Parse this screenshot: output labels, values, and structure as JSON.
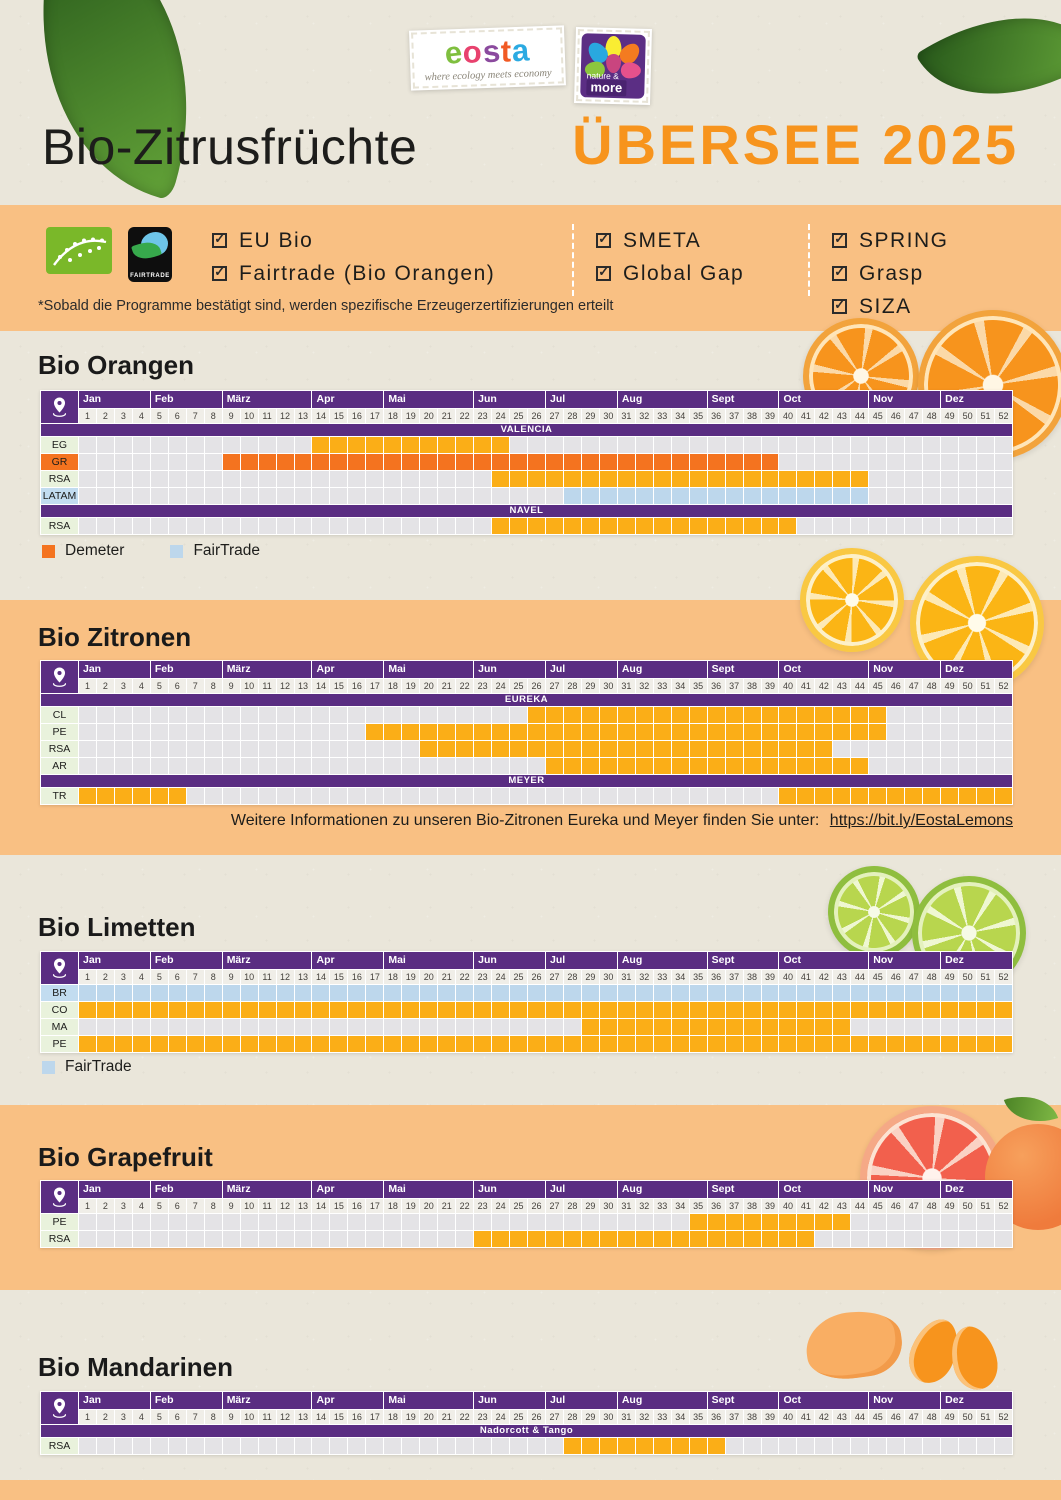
{
  "header": {
    "eosta_logo": {
      "word": "eosta",
      "tagline": "where ecology meets economy"
    },
    "nature_more_logo": {
      "top": "nature &",
      "bottom": "more"
    },
    "title_black": "Bio-Zitrusfrüchte",
    "title_orange": "ÜBERSEE 2025"
  },
  "certifications": {
    "fairtrade_logo_text": "FAIRTRADE",
    "columns": [
      [
        "EU Bio",
        "Fairtrade (Bio Orangen)"
      ],
      [
        "SMETA",
        "Global Gap"
      ],
      [
        "SPRING",
        "Grasp",
        "SIZA"
      ]
    ],
    "footnote": "*Sobald die Programme bestätigt sind, werden spezifische Erzeugerzertifizierungen erteilt"
  },
  "colors": {
    "purple": "#5A2D82",
    "standard_fill": "#FBAE17",
    "demeter_fill": "#F4731F",
    "fairtrade_fill": "#BDD7EC",
    "label_green": "#E9F2DC",
    "label_blue": "#C2DCF0",
    "empty_cell": "#E4E3E6",
    "band_orange": "#F9C083",
    "accent_orange": "#F7941D",
    "paper": "#EAE6DA"
  },
  "calendar": {
    "weeks_total": 52,
    "months": [
      {
        "label": "Jan",
        "weeks": 4
      },
      {
        "label": "Feb",
        "weeks": 4
      },
      {
        "label": "März",
        "weeks": 5
      },
      {
        "label": "Apr",
        "weeks": 4
      },
      {
        "label": "Mai",
        "weeks": 5
      },
      {
        "label": "Jun",
        "weeks": 4
      },
      {
        "label": "Jul",
        "weeks": 4
      },
      {
        "label": "Aug",
        "weeks": 5
      },
      {
        "label": "Sept",
        "weeks": 4
      },
      {
        "label": "Oct",
        "weeks": 5
      },
      {
        "label": "Nov",
        "weeks": 4
      },
      {
        "label": "Dez",
        "weeks": 4
      }
    ]
  },
  "legend_labels": {
    "demeter": "Demeter",
    "fairtrade": "FairTrade"
  },
  "chart_data": {
    "type": "gantt",
    "unit": "ISO week (1-52)",
    "charts": [
      {
        "title": "Bio Orangen",
        "legend": [
          "demeter",
          "fairtrade"
        ],
        "groups": [
          {
            "variety": "VALENCIA",
            "rows": [
              {
                "origin": "EG",
                "fill": "standard",
                "weeks": [
                  [
                    14,
                    24
                  ]
                ]
              },
              {
                "origin": "GR",
                "fill": "demeter",
                "weeks": [
                  [
                    9,
                    39
                  ]
                ]
              },
              {
                "origin": "RSA",
                "fill": "standard",
                "weeks": [
                  [
                    24,
                    44
                  ]
                ]
              },
              {
                "origin": "LATAM",
                "fill": "fairtrade",
                "weeks": [
                  [
                    28,
                    44
                  ]
                ]
              }
            ]
          },
          {
            "variety": "NAVEL",
            "rows": [
              {
                "origin": "RSA",
                "fill": "standard",
                "weeks": [
                  [
                    24,
                    40
                  ]
                ]
              }
            ]
          }
        ]
      },
      {
        "title": "Bio Zitronen",
        "legend": [],
        "note": "Weitere Informationen zu unseren Bio-Zitronen Eureka und Meyer finden Sie unter:",
        "link": "https://bit.ly/EostaLemons",
        "groups": [
          {
            "variety": "EUREKA",
            "rows": [
              {
                "origin": "CL",
                "fill": "standard",
                "weeks": [
                  [
                    26,
                    45
                  ]
                ]
              },
              {
                "origin": "PE",
                "fill": "standard",
                "weeks": [
                  [
                    17,
                    45
                  ]
                ]
              },
              {
                "origin": "RSA",
                "fill": "standard",
                "weeks": [
                  [
                    20,
                    42
                  ]
                ]
              },
              {
                "origin": "AR",
                "fill": "standard",
                "weeks": [
                  [
                    27,
                    44
                  ]
                ]
              }
            ]
          },
          {
            "variety": "MEYER",
            "rows": [
              {
                "origin": "TR",
                "fill": "standard",
                "weeks": [
                  [
                    1,
                    6
                  ],
                  [
                    40,
                    52
                  ]
                ]
              }
            ]
          }
        ]
      },
      {
        "title": "Bio Limetten",
        "legend": [
          "fairtrade"
        ],
        "groups": [
          {
            "variety": null,
            "rows": [
              {
                "origin": "BR",
                "fill": "fairtrade",
                "weeks": [
                  [
                    1,
                    52
                  ]
                ]
              },
              {
                "origin": "CO",
                "fill": "standard",
                "weeks": [
                  [
                    1,
                    52
                  ]
                ]
              },
              {
                "origin": "MA",
                "fill": "standard",
                "weeks": [
                  [
                    29,
                    43
                  ]
                ]
              },
              {
                "origin": "PE",
                "fill": "standard",
                "weeks": [
                  [
                    1,
                    52
                  ]
                ]
              }
            ]
          }
        ]
      },
      {
        "title": "Bio Grapefruit",
        "legend": [],
        "groups": [
          {
            "variety": null,
            "rows": [
              {
                "origin": "PE",
                "fill": "standard",
                "weeks": [
                  [
                    35,
                    43
                  ]
                ]
              },
              {
                "origin": "RSA",
                "fill": "standard",
                "weeks": [
                  [
                    23,
                    41
                  ]
                ]
              }
            ]
          }
        ]
      },
      {
        "title": "Bio Mandarinen",
        "legend": [],
        "groups": [
          {
            "variety": "Nadorcott & Tango",
            "rows": [
              {
                "origin": "RSA",
                "fill": "standard",
                "weeks": [
                  [
                    28,
                    36
                  ]
                ]
              }
            ]
          }
        ]
      }
    ]
  }
}
